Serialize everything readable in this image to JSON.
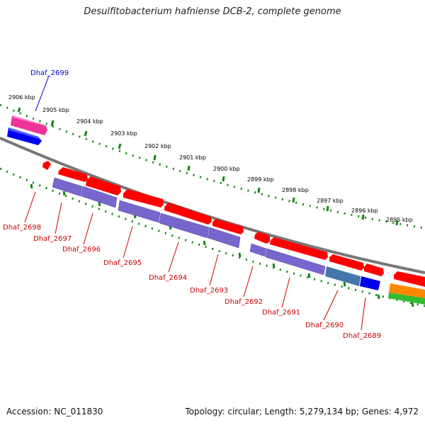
{
  "title": "Desulfitobacterium hafniense DCB-2, complete genome",
  "footer": {
    "accession": "Accession: NC_011830",
    "summary": "Topology: circular; Length: 5,279,134 bp; Genes: 4,972"
  },
  "scale_labels": [
    "2906 kbp",
    "2905 kbp",
    "2904 kbp",
    "2903 kbp",
    "2902 kbp",
    "2901 kbp",
    "2900 kbp",
    "2899 kbp",
    "2898 kbp",
    "2897 kbp",
    "2896 kbp",
    "2895 kbp"
  ],
  "genes_top": [
    "Dhaf_2699"
  ],
  "genes_bottom": [
    "Dhaf_2698",
    "Dhaf_2697",
    "Dhaf_2696",
    "Dhaf_2695",
    "Dhaf_2694",
    "Dhaf_2693",
    "Dhaf_2692",
    "Dhaf_2691",
    "Dhaf_2690",
    "Dhaf_2689"
  ],
  "colors": {
    "cds": "#ff0000",
    "mrna": "#7766cc",
    "gene_top": "#ee3399",
    "cds_top": "#0000ee",
    "steel": "#4477aa",
    "orange": "#ff8800",
    "green": "#33bb33",
    "scale": "#118811",
    "backbone": "#777777",
    "label_top": "#0000cc",
    "label_bottom": "#cc0000"
  }
}
